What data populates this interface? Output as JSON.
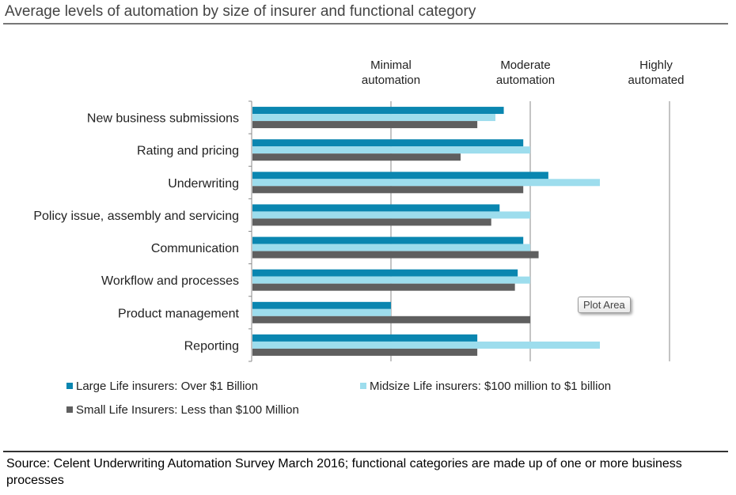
{
  "chart_data": {
    "type": "bar",
    "orientation": "horizontal",
    "title": "Average levels of automation by size of insurer and functional category",
    "categories": [
      "New business submissions",
      "Rating and pricing",
      "Underwriting",
      "Policy issue, assembly and servicing",
      "Communication",
      "Workflow and processes",
      "Product management",
      "Reporting"
    ],
    "series": [
      {
        "name": "Large Life insurers: Over $1 Billion",
        "color": "#0a86b0",
        "values": [
          1.81,
          1.95,
          2.13,
          1.78,
          1.95,
          1.91,
          1.0,
          1.62
        ]
      },
      {
        "name": "Midsize Life insurers: $100 million to $1 billion",
        "color": "#9ddded",
        "values": [
          1.75,
          2.0,
          2.5,
          2.0,
          2.0,
          2.0,
          1.0,
          2.5
        ]
      },
      {
        "name": "Small Life Insurers: Less than $100 Million",
        "color": "#5f5f5f",
        "values": [
          1.62,
          1.5,
          1.95,
          1.72,
          2.06,
          1.89,
          2.0,
          1.62
        ]
      }
    ],
    "xlim": [
      0,
      3
    ],
    "xticks": [
      1,
      2,
      3
    ],
    "xtick_labels": [
      [
        "Minimal",
        "automation"
      ],
      [
        "Moderate",
        "automation"
      ],
      [
        "Highly",
        "automated"
      ]
    ],
    "grid": "vertical",
    "legend": "bottom"
  },
  "tooltip": "Plot Area",
  "source": "Source: Celent Underwriting Automation Survey March 2016; functional categories are made up of one or more business processes"
}
